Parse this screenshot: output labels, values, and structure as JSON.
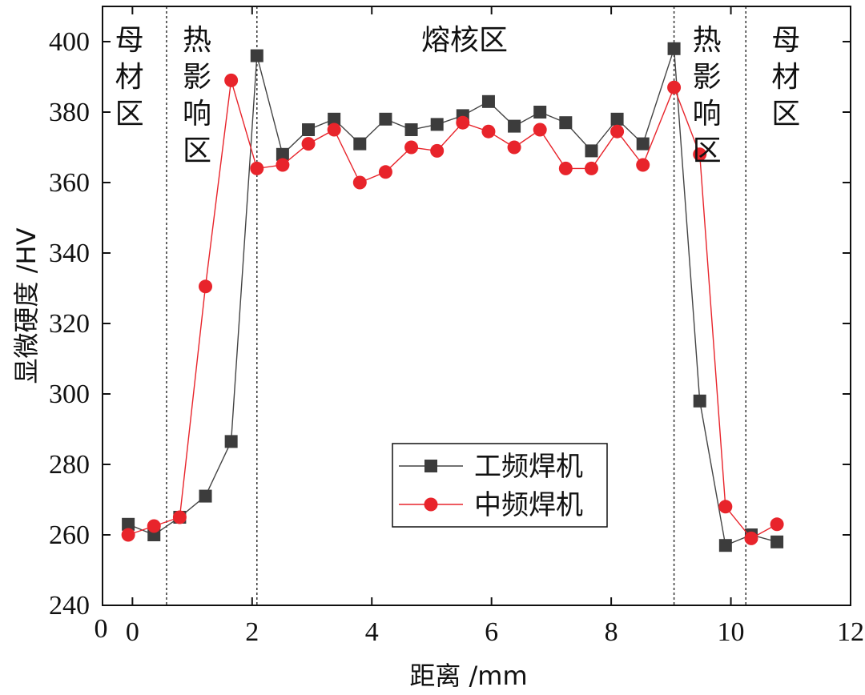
{
  "chart_data": {
    "type": "line",
    "xlabel": "距离 /mm",
    "ylabel": "显微硬度 /HV",
    "xlim": [
      -0.5,
      12
    ],
    "ylim": [
      240,
      410
    ],
    "xticks": [
      0,
      2,
      4,
      6,
      8,
      10,
      12
    ],
    "yticks": [
      240,
      260,
      280,
      300,
      320,
      340,
      360,
      380,
      400
    ],
    "corner_label": "0",
    "grid": false,
    "legend": "lower-right of center",
    "zone_boundaries": [
      0.57,
      2.08,
      9.05,
      10.25
    ],
    "zones": [
      {
        "label": "母材区",
        "x_center": -0.05,
        "lines": [
          "母",
          "材",
          "区"
        ]
      },
      {
        "label": "热影响区",
        "x_center": 1.08,
        "lines": [
          "热",
          "影",
          "响",
          "区"
        ]
      },
      {
        "label": "熔核区",
        "x_center": 5.55,
        "lines": [
          "熔核区"
        ]
      },
      {
        "label": "热影响区",
        "x_center": 9.6,
        "lines": [
          "热",
          "影",
          "响",
          "区"
        ]
      },
      {
        "label": "母材区",
        "x_center": 10.92,
        "lines": [
          "母",
          "材",
          "区"
        ]
      }
    ],
    "series": [
      {
        "name": "工频焊机",
        "color": "#444444",
        "marker": "square",
        "x": [
          -0.07,
          0.36,
          0.79,
          1.22,
          1.65,
          2.08,
          2.51,
          2.94,
          3.37,
          3.8,
          4.23,
          4.66,
          5.09,
          5.52,
          5.95,
          6.38,
          6.81,
          7.24,
          7.67,
          8.1,
          8.53,
          9.05,
          9.48,
          9.91,
          10.34,
          10.77
        ],
        "values": [
          263,
          260,
          265,
          271,
          286.5,
          396,
          368,
          375,
          378,
          371,
          378,
          375,
          376.5,
          379,
          383,
          376,
          380,
          377,
          369,
          378,
          371,
          398,
          298,
          257,
          260,
          258
        ]
      },
      {
        "name": "中频焊机",
        "color": "#e8242b",
        "marker": "circle",
        "x": [
          -0.07,
          0.36,
          0.79,
          1.22,
          1.65,
          2.08,
          2.51,
          2.94,
          3.37,
          3.8,
          4.23,
          4.66,
          5.09,
          5.52,
          5.95,
          6.38,
          6.81,
          7.24,
          7.67,
          8.1,
          8.53,
          9.05,
          9.48,
          9.91,
          10.34,
          10.77
        ],
        "values": [
          260,
          262.5,
          265,
          330.5,
          389,
          364,
          365,
          371,
          375,
          360,
          363,
          370,
          369,
          377,
          374.5,
          370,
          375,
          364,
          364,
          374.5,
          365,
          387,
          368,
          268,
          259,
          263
        ]
      }
    ]
  }
}
